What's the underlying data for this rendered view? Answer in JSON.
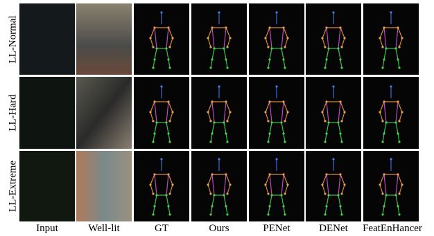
{
  "row_labels": [
    "LL-Normal",
    "LL-Hard",
    "LL-Extreme"
  ],
  "column_labels": [
    "Input",
    "Well-lit",
    "GT",
    "Ours",
    "PENet",
    "DENet",
    "FeatEnHancer"
  ]
}
